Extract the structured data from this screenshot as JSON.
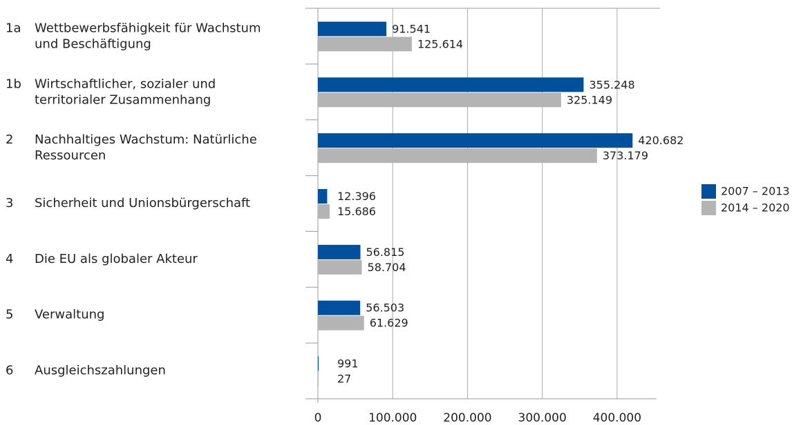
{
  "chart_data": {
    "type": "bar",
    "orientation": "horizontal",
    "codes": [
      "1a",
      "1b",
      "2",
      "3",
      "4",
      "5",
      "6"
    ],
    "categories": [
      [
        "Wettbewerbsfähigkeit für Wachstum",
        "und Beschäftigung"
      ],
      [
        "Wirtschaftlicher, sozialer und",
        "territorialer Zusammenhang"
      ],
      [
        "Nachhaltiges Wachstum: Natürliche",
        "Ressourcen"
      ],
      [
        "Sicherheit und Unionsbürgerschaft"
      ],
      [
        "Die EU als globaler Akteur"
      ],
      [
        "Verwaltung"
      ],
      [
        "Ausgleichszahlungen"
      ]
    ],
    "series": [
      {
        "name": "2007 – 2013",
        "color": "#00509e",
        "values": [
          91541,
          355248,
          420682,
          12396,
          56815,
          56503,
          991
        ],
        "value_labels": [
          "91.541",
          "355.248",
          "420.682",
          "12.396",
          "56.815",
          "56.503",
          "991"
        ]
      },
      {
        "name": "2014 – 2020",
        "color": "#b4b4b4",
        "values": [
          125614,
          325149,
          373179,
          15686,
          58704,
          61629,
          27
        ],
        "value_labels": [
          "125.614",
          "325.149",
          "373.179",
          "15.686",
          "58.704",
          "61.629",
          "27"
        ]
      }
    ],
    "xlim": [
      0,
      450000
    ],
    "xticks": [
      0,
      {
        "value": 100000,
        "label": "100.000"
      },
      {
        "value": 200000,
        "label": "200.000"
      },
      {
        "value": 300000,
        "label": "300.000"
      },
      {
        "value": 400000,
        "label": "400.000"
      }
    ],
    "grid": true,
    "legend": "right"
  }
}
